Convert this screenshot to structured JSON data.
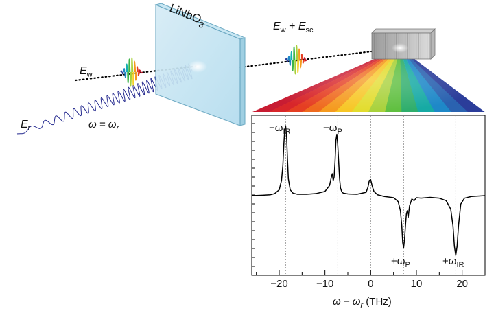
{
  "labels": {
    "crystal_main": "LiNbO",
    "crystal_sub": "3",
    "ew_main": "E",
    "ew_sub": "w",
    "sum_e1": "E",
    "sum_s1": "w",
    "sum_plus": " + ",
    "sum_e2": "E",
    "sum_s2": "sc",
    "er_main": "E",
    "er_sub": "r",
    "omega_main": "ω = ω",
    "omega_sub": "r"
  },
  "spectrum_peaks": {
    "neg_ir_main": "−ω",
    "neg_ir_sub": "IR",
    "neg_p_main": "−ω",
    "neg_p_sub": "P",
    "pos_p_main": "+ω",
    "pos_p_sub": "P",
    "pos_ir_main": "+ω",
    "pos_ir_sub": "IR"
  },
  "chart_data": {
    "type": "line",
    "xlabel_main": "ω − ω",
    "xlabel_sub": "r",
    "xlabel_unit": " (THz)",
    "xlim": [
      -26,
      25
    ],
    "xticks": [
      -20,
      -10,
      0,
      10,
      20
    ],
    "xtick_labels": [
      "−20",
      "−10",
      "0",
      "10",
      "20"
    ],
    "reference_lines": [
      -18.6,
      -7.2,
      0,
      7.2,
      18.6
    ],
    "series": [
      {
        "x": [
          -26,
          -24,
          -22,
          -21,
          -20,
          -19.5,
          -19.2,
          -19.0,
          -18.8,
          -18.6,
          -18.4,
          -18.2,
          -18.0,
          -17.6,
          -17,
          -16,
          -14,
          -12,
          -10,
          -9,
          -8.6,
          -8.4,
          -8.2,
          -8.0,
          -7.8,
          -7.6,
          -7.4,
          -7.2,
          -7.0,
          -6.8,
          -6.6,
          -6.3,
          -6,
          -5,
          -3,
          -1,
          -0.6,
          -0.3,
          0,
          0.3,
          0.7,
          1.5,
          3,
          5,
          6,
          6.5,
          6.8,
          7.0,
          7.2,
          7.4,
          7.6,
          7.8,
          8.0,
          8.2,
          8.5,
          9,
          9.5,
          10,
          11,
          13,
          15,
          16.5,
          17.5,
          18.0,
          18.3,
          18.6,
          18.9,
          19.2,
          19.7,
          20.5,
          22,
          25
        ],
        "y": [
          0,
          0.02,
          0.05,
          0.12,
          0.35,
          0.9,
          1.8,
          3.0,
          3.9,
          4.15,
          3.6,
          2.2,
          1.0,
          0.35,
          0.15,
          0.08,
          0.08,
          0.12,
          0.25,
          0.6,
          1.1,
          1.3,
          0.9,
          1.1,
          2.0,
          3.3,
          3.65,
          3.0,
          2.0,
          1.0,
          0.45,
          0.22,
          0.15,
          0.1,
          0.08,
          0.2,
          0.5,
          0.9,
          0.95,
          0.6,
          0.25,
          0.05,
          -0.05,
          -0.12,
          -0.35,
          -0.9,
          -1.8,
          -2.8,
          -3.1,
          -2.6,
          -1.8,
          -1.1,
          -0.9,
          -1.3,
          -0.6,
          -0.2,
          -0.3,
          -0.12,
          -0.15,
          -0.1,
          -0.15,
          -0.3,
          -0.8,
          -1.8,
          -3.0,
          -3.55,
          -3.0,
          -1.8,
          -0.5,
          -0.15,
          -0.05,
          0
        ]
      }
    ]
  }
}
